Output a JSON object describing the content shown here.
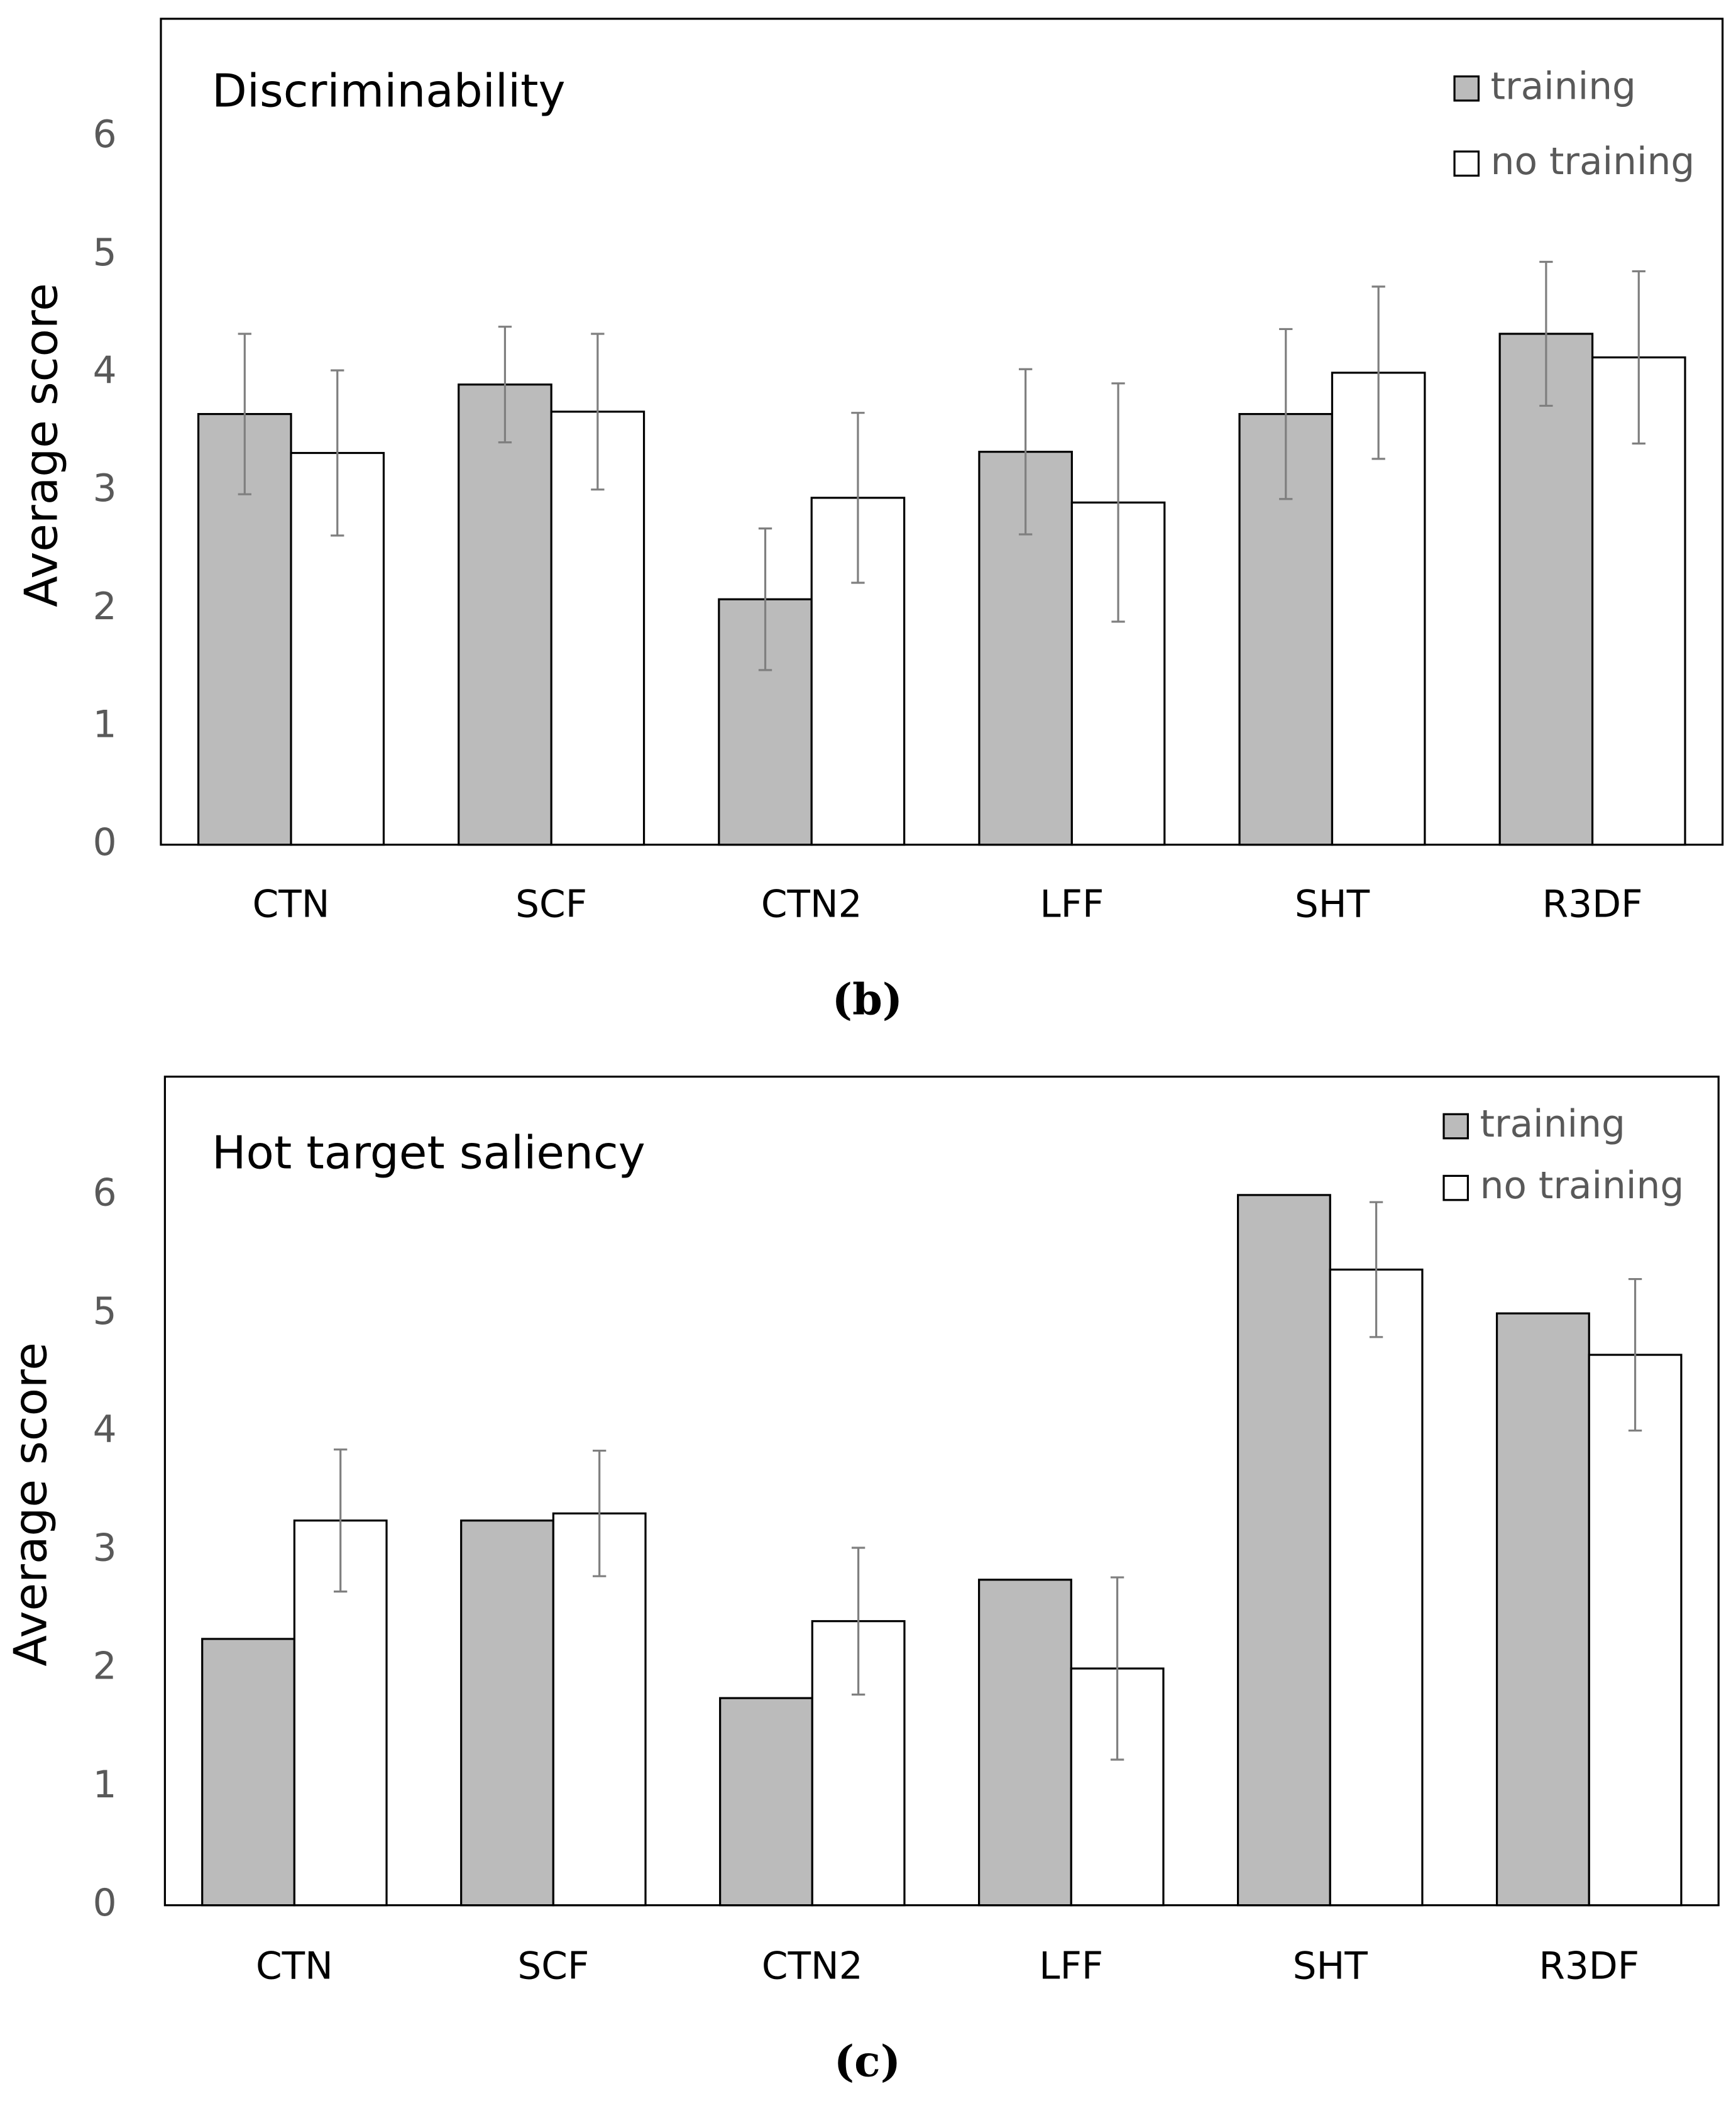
{
  "chart_data": [
    {
      "type": "bar",
      "title": "Discriminability",
      "ylabel": "Average score",
      "caption": "(b)",
      "categories": [
        "CTN",
        "SCF",
        "CTN2",
        "LFF",
        "SHT",
        "R3DF"
      ],
      "series": [
        {
          "name": "training",
          "color": "#bbbbbb",
          "values": [
            3.65,
            3.9,
            2.08,
            3.33,
            3.65,
            4.33
          ],
          "errors": [
            0.68,
            0.49,
            0.6,
            0.7,
            0.72,
            0.61
          ]
        },
        {
          "name": "no training",
          "color": "#ffffff",
          "values": [
            3.32,
            3.67,
            2.94,
            2.9,
            4.0,
            4.13
          ],
          "errors": [
            0.7,
            0.66,
            0.72,
            1.01,
            0.73,
            0.73
          ]
        }
      ],
      "ylim": [
        0,
        7
      ],
      "yticks": [
        0,
        1,
        2,
        3,
        4,
        5,
        6
      ],
      "legend": "upper right"
    },
    {
      "type": "bar",
      "title": "Hot target saliency",
      "ylabel": "Average score",
      "caption": "(c)",
      "categories": [
        "CTN",
        "SCF",
        "CTN2",
        "LFF",
        "SHT",
        "R3DF"
      ],
      "series": [
        {
          "name": "training",
          "color": "#bbbbbb",
          "values": [
            2.25,
            3.25,
            1.75,
            2.75,
            6,
            5
          ]
        },
        {
          "name": "no training",
          "color": "#ffffff",
          "values": [
            3.25,
            3.31,
            2.4,
            2.0,
            5.37,
            4.65
          ],
          "errors": [
            0.6,
            0.53,
            0.62,
            0.77,
            0.57,
            0.64
          ]
        }
      ],
      "ylim": [
        0,
        7
      ],
      "yticks": [
        0,
        1,
        2,
        3,
        4,
        5,
        6
      ],
      "legend": "upper right"
    }
  ]
}
